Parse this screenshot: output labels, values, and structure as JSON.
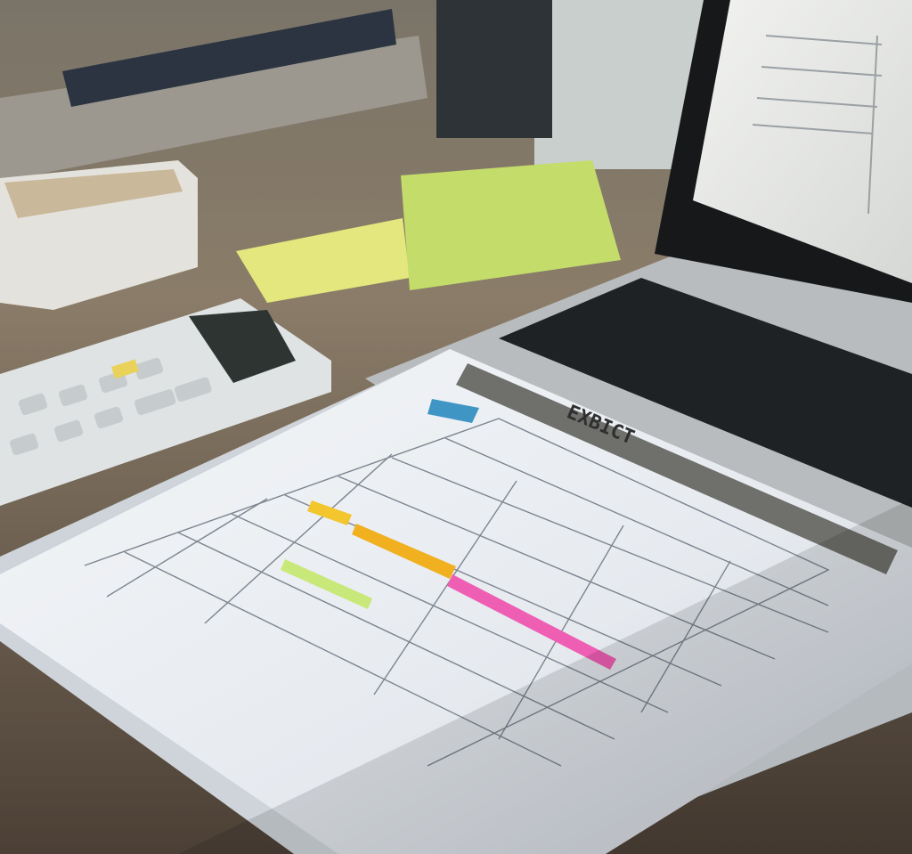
{
  "scene": {
    "description_label": "",
    "paper_header_text": "EXBICT",
    "colors": {
      "desk": "#6b5e4f",
      "wall": "#c9cdc8",
      "paper": "#eef1f4",
      "header_band": "#6f6f6c",
      "highlight_yellow": "#f2c62c",
      "highlight_orange": "#f0b020",
      "highlight_pink": "#ee5fb4",
      "highlight_green": "#c9e87a",
      "blue_tab": "#3f95c4",
      "sticky_yellow": "#e3e77e",
      "sticky_green": "#c4dc6a",
      "calculator": "#dfe3e4",
      "laptop_screen": "#e9ebea",
      "keyboard": "#1f2224"
    }
  }
}
